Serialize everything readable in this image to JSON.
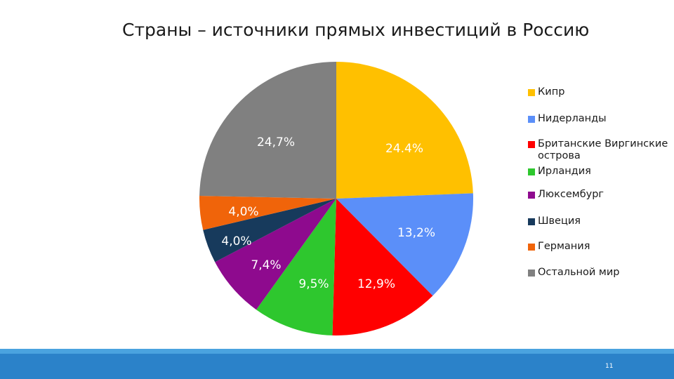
{
  "slide": {
    "title": "Страны – источники прямых инвестиций в Россию",
    "page_number": "11"
  },
  "colors": {
    "footer_bar": "#2b82c9",
    "footer_stripe": "#4aa3df"
  },
  "chart_data": {
    "type": "pie",
    "title": "",
    "legend_position": "right",
    "slices": [
      {
        "name": "Кипр",
        "value": 24.4,
        "label": "24.4%",
        "color": "#ffc000"
      },
      {
        "name": "Нидерланды",
        "value": 13.2,
        "label": "13,2%",
        "color": "#5b8ff9"
      },
      {
        "name": "Британские Виргинские острова",
        "value": 12.9,
        "label": "12,9%",
        "color": "#ff0000"
      },
      {
        "name": "Ирландия",
        "value": 9.5,
        "label": "9,5%",
        "color": "#2ec72e"
      },
      {
        "name": "Люксембург",
        "value": 7.4,
        "label": "7,4%",
        "color": "#8e0a8e"
      },
      {
        "name": "Швеция",
        "value": 4.0,
        "label": "4,0%",
        "color": "#173a5c"
      },
      {
        "name": "Германия",
        "value": 4.0,
        "label": "4,0%",
        "color": "#f0640a"
      },
      {
        "name": "Остальной мир",
        "value": 24.7,
        "label": "24,7%",
        "color": "#808080"
      }
    ]
  }
}
